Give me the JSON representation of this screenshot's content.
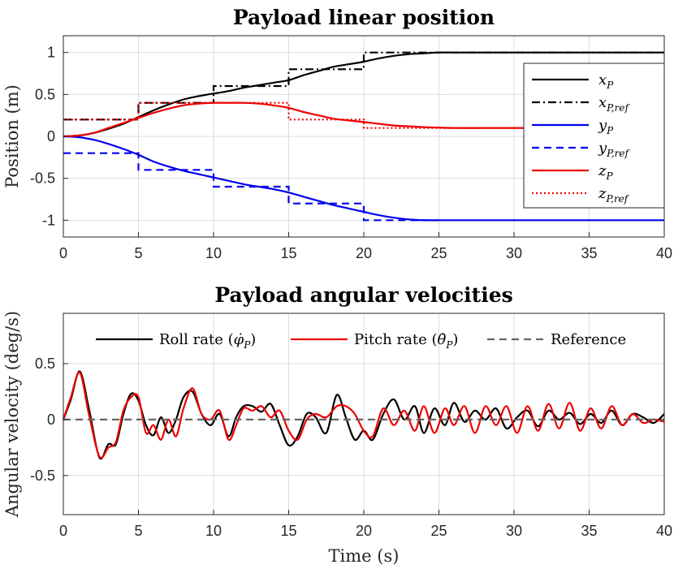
{
  "chart_data": [
    {
      "type": "line",
      "title": "Payload linear position",
      "xlabel": "",
      "ylabel": "Position (m)",
      "xlim": [
        0,
        40
      ],
      "ylim": [
        -1.2,
        1.2
      ],
      "xticks": [
        "0",
        "5",
        "10",
        "15",
        "20",
        "25",
        "30",
        "35",
        "40"
      ],
      "yticks": [
        "-1",
        "-0.5",
        "0",
        "0.5",
        "1"
      ],
      "ytick_values": [
        -1,
        -0.5,
        0,
        0.5,
        1
      ],
      "grid": true,
      "legend_position": "right",
      "series": [
        {
          "key": "xP",
          "name": "x_P",
          "legend_main": "x",
          "legend_sub": "P",
          "color": "#000000",
          "dash": "solid",
          "x": [
            0,
            1,
            2,
            3,
            4,
            5,
            6,
            7,
            8,
            9,
            10,
            11,
            12,
            13,
            14,
            15,
            16,
            17,
            18,
            19,
            20,
            21,
            22,
            23,
            24,
            25,
            26,
            28,
            30,
            35,
            40
          ],
          "y": [
            0,
            0.01,
            0.04,
            0.09,
            0.15,
            0.23,
            0.31,
            0.38,
            0.44,
            0.48,
            0.51,
            0.54,
            0.58,
            0.61,
            0.64,
            0.67,
            0.73,
            0.78,
            0.83,
            0.86,
            0.89,
            0.93,
            0.96,
            0.98,
            0.99,
            1.0,
            1.0,
            1.0,
            1.0,
            1.0,
            1.0
          ]
        },
        {
          "key": "xPref",
          "name": "x_P,ref",
          "legend_main": "x",
          "legend_sub": "P,ref",
          "color": "#000000",
          "dash": "dashdot",
          "x": [
            0,
            5,
            5,
            10,
            10,
            15,
            15,
            20,
            20,
            40
          ],
          "y": [
            0.2,
            0.2,
            0.4,
            0.4,
            0.6,
            0.6,
            0.8,
            0.8,
            1.0,
            1.0
          ]
        },
        {
          "key": "yP",
          "name": "y_P",
          "legend_main": "y",
          "legend_sub": "P",
          "color": "#0000ee",
          "dash": "solid",
          "x": [
            0,
            1,
            2,
            3,
            4,
            5,
            6,
            7,
            8,
            9,
            10,
            11,
            12,
            13,
            14,
            15,
            16,
            17,
            18,
            19,
            20,
            21,
            22,
            23,
            24,
            25,
            26,
            28,
            30,
            35,
            40
          ],
          "y": [
            0,
            -0.01,
            -0.04,
            -0.09,
            -0.15,
            -0.22,
            -0.3,
            -0.36,
            -0.41,
            -0.45,
            -0.49,
            -0.53,
            -0.57,
            -0.6,
            -0.63,
            -0.67,
            -0.72,
            -0.77,
            -0.82,
            -0.86,
            -0.9,
            -0.94,
            -0.97,
            -0.99,
            -1.0,
            -1.0,
            -1.0,
            -1.0,
            -1.0,
            -1.0,
            -1.0
          ]
        },
        {
          "key": "yPref",
          "name": "y_P,ref",
          "legend_main": "y",
          "legend_sub": "P,ref",
          "color": "#0000ee",
          "dash": "dashed",
          "x": [
            0,
            5,
            5,
            10,
            10,
            15,
            15,
            20,
            20,
            25
          ],
          "y": [
            -0.2,
            -0.2,
            -0.4,
            -0.4,
            -0.6,
            -0.6,
            -0.8,
            -0.8,
            -1.0,
            -1.0
          ]
        },
        {
          "key": "zP",
          "name": "z_P",
          "legend_main": "z",
          "legend_sub": "P",
          "color": "#ee0000",
          "dash": "solid",
          "x": [
            0,
            1,
            2,
            3,
            4,
            5,
            6,
            7,
            8,
            9,
            10,
            11,
            12,
            13,
            14,
            15,
            16,
            17,
            18,
            19,
            20,
            21,
            22,
            23,
            24,
            25,
            26,
            28,
            30,
            35,
            40
          ],
          "y": [
            0,
            0.01,
            0.04,
            0.1,
            0.16,
            0.22,
            0.28,
            0.33,
            0.37,
            0.39,
            0.4,
            0.4,
            0.4,
            0.39,
            0.37,
            0.34,
            0.29,
            0.25,
            0.21,
            0.19,
            0.17,
            0.15,
            0.13,
            0.12,
            0.11,
            0.105,
            0.1,
            0.1,
            0.1,
            0.1,
            0.1
          ]
        },
        {
          "key": "zPref",
          "name": "z_P,ref",
          "legend_main": "z",
          "legend_sub": "P,ref",
          "color": "#ee0000",
          "dash": "dotted",
          "x": [
            0,
            5,
            5,
            10,
            10,
            15,
            15,
            20,
            20,
            40
          ],
          "y": [
            0.2,
            0.2,
            0.4,
            0.4,
            0.4,
            0.4,
            0.2,
            0.2,
            0.1,
            0.1
          ]
        }
      ]
    },
    {
      "type": "line",
      "title": "Payload angular velocities",
      "xlabel": "Time (s)",
      "ylabel": "Angular velocity (deg/s)",
      "xlim": [
        0,
        40
      ],
      "ylim": [
        -0.85,
        0.95
      ],
      "xticks": [
        "0",
        "5",
        "10",
        "15",
        "20",
        "25",
        "30",
        "35",
        "40"
      ],
      "yticks": [
        "-0.5",
        "0",
        "0.5"
      ],
      "ytick_values": [
        -0.5,
        0,
        0.5
      ],
      "grid": true,
      "legend_position": "top",
      "series": [
        {
          "key": "roll",
          "name": "Roll rate (φ̇_P)",
          "legend_label": "Roll rate (",
          "legend_sym": "φ̇",
          "legend_sub": "P",
          "legend_close": ")",
          "color": "#000000",
          "dash": "solid",
          "x": [
            0,
            0.5,
            1.1,
            1.7,
            2.4,
            3.0,
            3.5,
            4.0,
            4.5,
            5.0,
            5.5,
            6.0,
            6.5,
            7.0,
            7.5,
            8.0,
            8.6,
            9.2,
            9.8,
            10.4,
            11.0,
            11.5,
            12.0,
            12.6,
            13.2,
            13.8,
            14.4,
            15.0,
            15.6,
            16.2,
            16.8,
            17.5,
            18.2,
            18.8,
            19.4,
            20.0,
            20.6,
            21.3,
            22.0,
            22.7,
            23.4,
            24.0,
            24.7,
            25.4,
            26.0,
            26.7,
            27.4,
            28.1,
            28.8,
            29.5,
            30.2,
            30.9,
            31.6,
            32.3,
            33.0,
            33.7,
            34.4,
            35.1,
            35.8,
            36.5,
            37.2,
            37.9,
            38.6,
            39.3,
            40.0
          ],
          "y": [
            0,
            0.18,
            0.43,
            0.1,
            -0.34,
            -0.22,
            -0.22,
            0.05,
            0.23,
            0.17,
            -0.05,
            -0.14,
            0.02,
            -0.12,
            0.0,
            0.2,
            0.25,
            0.05,
            -0.05,
            0.05,
            -0.15,
            0.02,
            0.12,
            0.12,
            0.07,
            0.14,
            -0.05,
            -0.23,
            -0.15,
            0.05,
            0.02,
            -0.12,
            0.22,
            0.02,
            -0.18,
            -0.1,
            -0.18,
            0.05,
            0.18,
            0.0,
            0.12,
            -0.12,
            0.1,
            -0.05,
            0.15,
            -0.02,
            0.08,
            0.0,
            0.1,
            -0.08,
            0.02,
            0.08,
            -0.06,
            0.08,
            0.0,
            0.06,
            -0.04,
            0.05,
            -0.03,
            0.08,
            -0.05,
            0.05,
            0.02,
            -0.03,
            0.05
          ]
        },
        {
          "key": "pitch",
          "name": "Pitch rate (θ̇_P)",
          "legend_label": "Pitch rate (",
          "legend_sym": "θ̇",
          "legend_sub": "P",
          "legend_close": ")",
          "color": "#ee0000",
          "dash": "solid",
          "x": [
            0,
            0.5,
            1.1,
            1.7,
            2.4,
            3.0,
            3.5,
            4.0,
            4.5,
            5.0,
            5.5,
            6.0,
            6.5,
            7.0,
            7.5,
            8.0,
            8.6,
            9.2,
            9.8,
            10.4,
            11.0,
            11.5,
            12.0,
            12.6,
            13.2,
            13.8,
            14.4,
            15.0,
            15.6,
            16.2,
            16.8,
            17.5,
            18.2,
            18.8,
            19.4,
            20.0,
            20.6,
            21.3,
            22.0,
            22.7,
            23.4,
            24.0,
            24.7,
            25.4,
            26.0,
            26.7,
            27.4,
            28.1,
            28.8,
            29.5,
            30.2,
            30.9,
            31.6,
            32.3,
            33.0,
            33.7,
            34.4,
            35.1,
            35.8,
            36.5,
            37.2,
            37.9,
            38.6,
            39.3,
            40.0
          ],
          "y": [
            0,
            0.2,
            0.42,
            0.05,
            -0.33,
            -0.25,
            -0.2,
            0.08,
            0.2,
            0.2,
            -0.12,
            -0.05,
            -0.18,
            0.0,
            -0.15,
            0.1,
            0.28,
            0.05,
            0.0,
            0.08,
            -0.18,
            -0.05,
            0.1,
            0.08,
            0.12,
            0.02,
            0.08,
            -0.1,
            -0.18,
            0.0,
            0.05,
            0.02,
            0.12,
            0.12,
            0.05,
            -0.1,
            -0.15,
            0.1,
            -0.05,
            0.08,
            -0.1,
            0.12,
            -0.12,
            0.1,
            -0.05,
            0.12,
            -0.12,
            0.12,
            -0.05,
            0.12,
            -0.12,
            0.12,
            -0.1,
            0.14,
            -0.08,
            0.15,
            -0.1,
            0.1,
            -0.08,
            0.12,
            -0.05,
            0.05,
            -0.03,
            0.0,
            -0.02
          ]
        },
        {
          "key": "ref",
          "name": "Reference",
          "legend_label": "Reference",
          "color": "#666666",
          "dash": "dashed",
          "x": [
            0,
            40
          ],
          "y": [
            0,
            0
          ]
        }
      ]
    }
  ]
}
